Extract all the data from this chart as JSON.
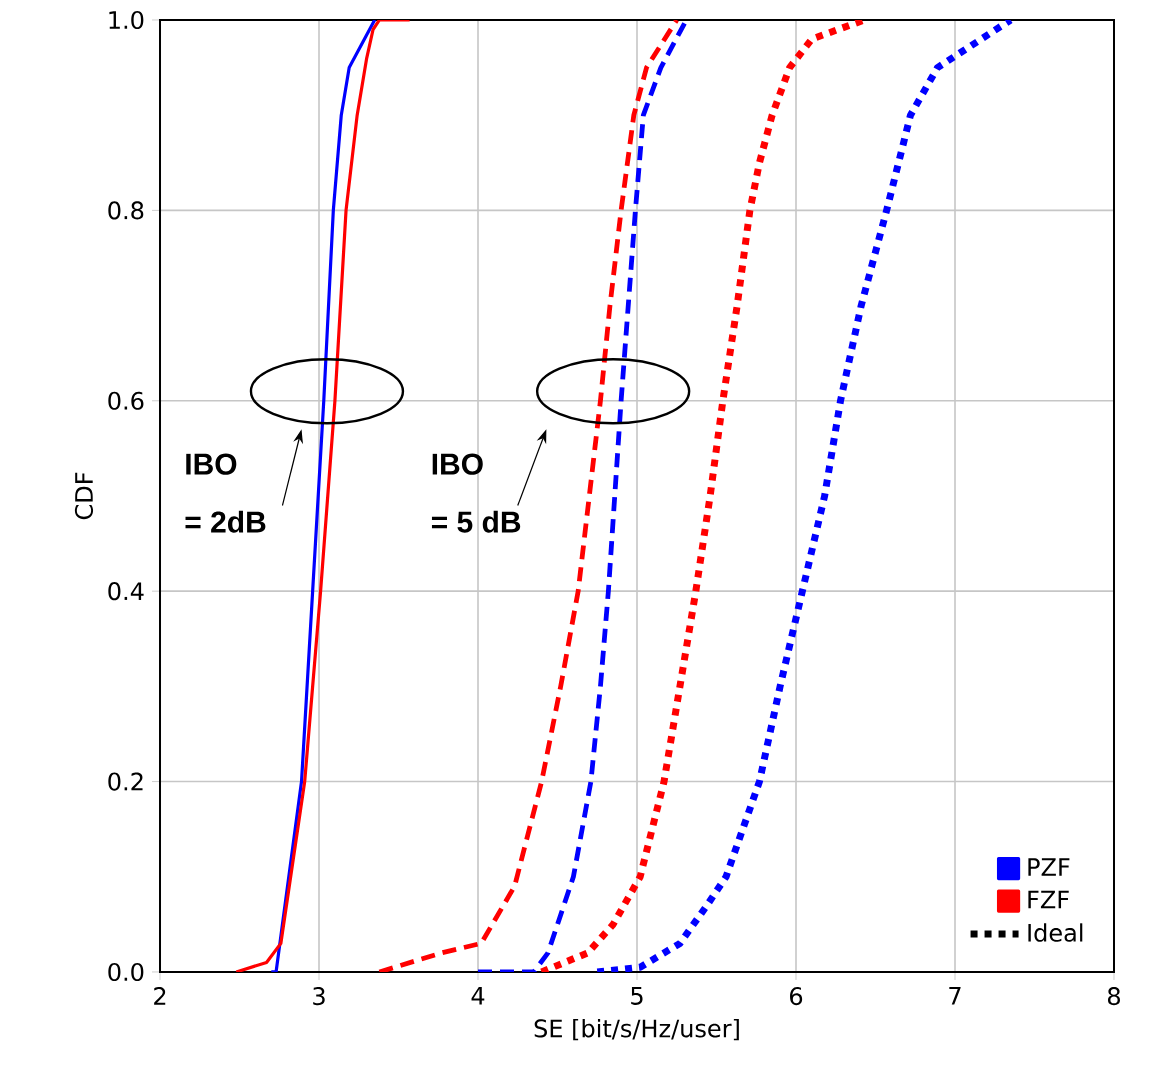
{
  "chart_data": {
    "type": "line",
    "xlabel": "SE [bit/s/Hz/user]",
    "ylabel": "CDF",
    "xlim": [
      2,
      8
    ],
    "xticks": [
      2,
      3,
      4,
      5,
      6,
      7,
      8
    ],
    "ylim": [
      0,
      1
    ],
    "yticks": [
      {
        "value": 0,
        "label": "0.0"
      },
      {
        "value": 0.2,
        "label": "0.2"
      },
      {
        "value": 0.4,
        "label": "0.4"
      },
      {
        "value": 0.6,
        "label": "0.6"
      },
      {
        "value": 0.8,
        "label": "0.8"
      },
      {
        "value": 1,
        "label": "1.0"
      }
    ],
    "grid": true,
    "legend": "bottom right",
    "marker": "none",
    "annotations": [
      "IBO",
      "= 2dB",
      "IBO",
      "= 5 dB"
    ],
    "series": [
      {
        "name": "PZF",
        "color": "#0000ff",
        "line_style": "solid",
        "x": [
          2.7,
          2.73,
          2.89,
          2.96,
          3.03,
          3.09,
          3.14,
          3.19,
          3.35
        ],
        "values": [
          0,
          0.0,
          0.2,
          0.4,
          0.6,
          0.8,
          0.9,
          0.95,
          1.0
        ]
      },
      {
        "name": "FZF",
        "color": "#ff0000",
        "line_style": "solid",
        "x": [
          2.48,
          2.67,
          2.76,
          2.91,
          3.01,
          3.1,
          3.17,
          3.24,
          3.3,
          3.34,
          3.38,
          3.57
        ],
        "values": [
          0,
          0.01,
          0.03,
          0.2,
          0.4,
          0.6,
          0.8,
          0.9,
          0.96,
          0.99,
          1.0,
          1.0
        ]
      },
      {
        "color": "#ff0000",
        "line_style": "dashed",
        "x": [
          3.38,
          3.77,
          4.02,
          4.23,
          4.4,
          4.52,
          4.63,
          4.7,
          4.77,
          4.83,
          4.9,
          4.98,
          5.06,
          5.25
        ],
        "values": [
          0,
          0.02,
          0.03,
          0.09,
          0.2,
          0.3,
          0.4,
          0.5,
          0.6,
          0.7,
          0.8,
          0.9,
          0.95,
          1.0
        ]
      },
      {
        "color": "#0000ff",
        "line_style": "dashed",
        "x": [
          4.0,
          4.35,
          4.44,
          4.6,
          4.71,
          4.77,
          4.82,
          4.9,
          4.99,
          5.04,
          5.15,
          5.31
        ],
        "values": [
          0,
          0,
          0.02,
          0.1,
          0.2,
          0.3,
          0.4,
          0.6,
          0.8,
          0.9,
          0.95,
          1.0
        ]
      },
      {
        "name": "Ideal",
        "color": "#0000ff",
        "line_style": "dotted",
        "x": [
          4.75,
          5.02,
          5.27,
          5.44,
          5.56,
          5.77,
          5.9,
          6.04,
          6.18,
          6.28,
          6.41,
          6.57,
          6.72,
          6.89,
          7.35
        ],
        "values": [
          0,
          0.005,
          0.03,
          0.07,
          0.1,
          0.2,
          0.3,
          0.4,
          0.5,
          0.6,
          0.7,
          0.8,
          0.9,
          0.95,
          1.0
        ]
      },
      {
        "color": "#ff0000",
        "line_style": "dotted",
        "x": [
          4.4,
          4.69,
          4.85,
          5.02,
          5.17,
          5.27,
          5.37,
          5.46,
          5.54,
          5.63,
          5.71,
          5.77,
          5.85,
          5.96,
          6.1,
          6.43
        ],
        "values": [
          0,
          0.02,
          0.05,
          0.1,
          0.2,
          0.3,
          0.4,
          0.5,
          0.6,
          0.7,
          0.8,
          0.85,
          0.9,
          0.95,
          0.98,
          1.0
        ]
      }
    ]
  }
}
